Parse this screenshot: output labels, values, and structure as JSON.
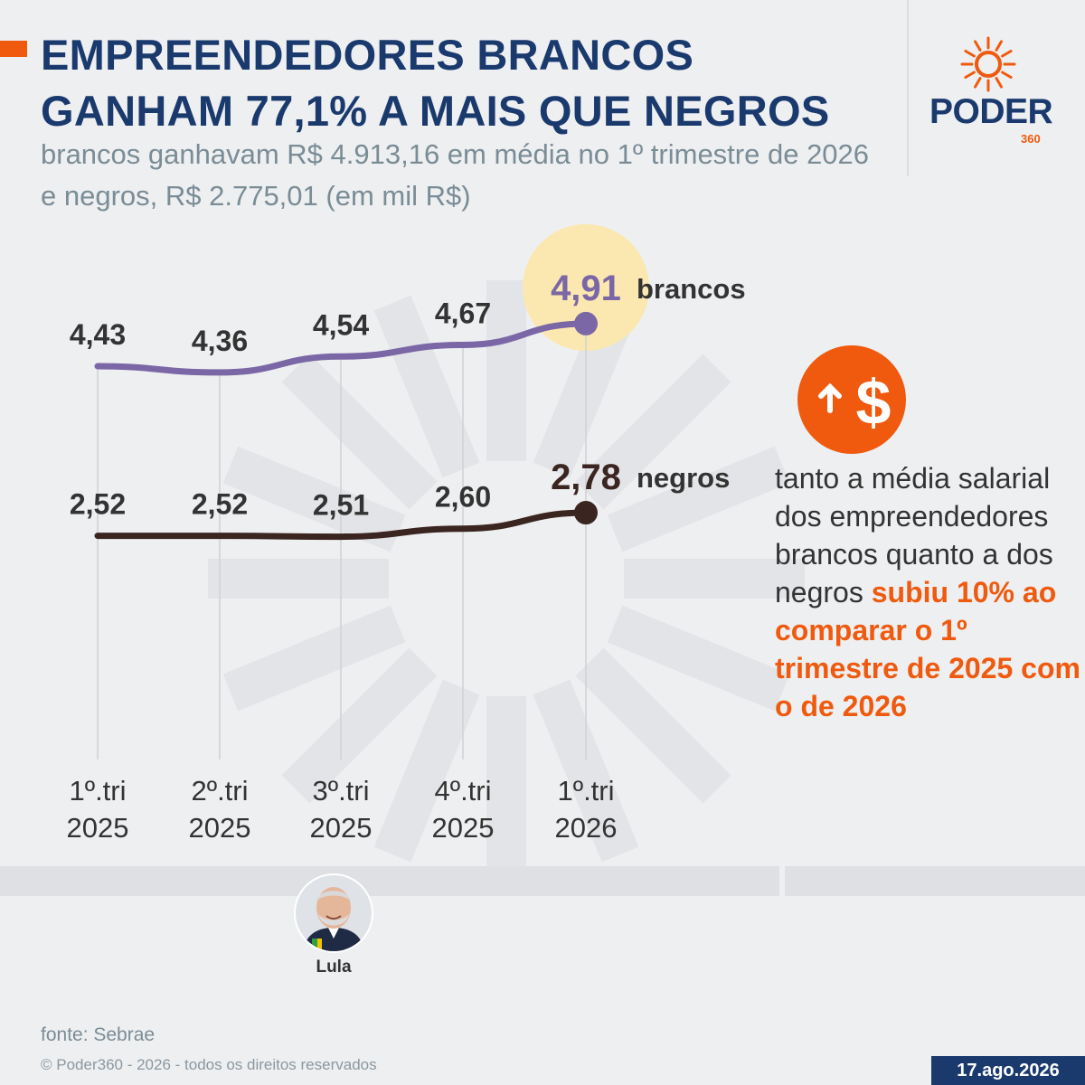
{
  "header": {
    "title": "EMPREENDEDORES BRANCOS GANHAM 77,1% A MAIS QUE NEGROS",
    "subtitle": "brancos ganhavam R$ 4.913,16 em média no 1º trimestre de 2026 e negros, R$ 2.775,01 (em mil R$)"
  },
  "logo": {
    "name": "PODER",
    "suffix": "360",
    "icon": "sun-rays-icon"
  },
  "colors": {
    "accent": "#ef5a0f",
    "navy": "#1a3a6e",
    "brancos": "#7b66a6",
    "negros": "#3a2520",
    "highlight": "#fbe8b0"
  },
  "chart_data": {
    "type": "line",
    "categories": [
      "1º.tri 2025",
      "2º.tri 2025",
      "3º.tri 2025",
      "4º.tri 2025",
      "1º.tri 2026"
    ],
    "series": [
      {
        "name": "brancos",
        "values": [
          4.43,
          4.36,
          4.54,
          4.67,
          4.91
        ],
        "labels": [
          "4,43",
          "4,36",
          "4,54",
          "4,67",
          "4,91"
        ]
      },
      {
        "name": "negros",
        "values": [
          2.52,
          2.52,
          2.51,
          2.6,
          2.78
        ],
        "labels": [
          "2,52",
          "2,52",
          "2,51",
          "2,60",
          "2,78"
        ]
      }
    ],
    "title": "EMPREENDEDORES BRANCOS GANHAM 77,1% A MAIS QUE NEGROS",
    "xlabel": "",
    "ylabel": "",
    "grid": "vertical",
    "legend": "direct labels at line ends"
  },
  "side_note": {
    "icon": "dollar-up-arrow-icon",
    "text_plain": "tanto a média salarial dos empreendedores brancos quanto a dos negros ",
    "text_highlight": "subiu 10% ao comparar o 1º trimestre de 2025 com o de 2026"
  },
  "person": {
    "name": "Lula",
    "icon": "person-avatar-icon"
  },
  "footer": {
    "source": "fonte: Sebrae",
    "copyright": "© Poder360 - 2026 - todos os direitos reservados",
    "date": "17.ago.2026"
  }
}
